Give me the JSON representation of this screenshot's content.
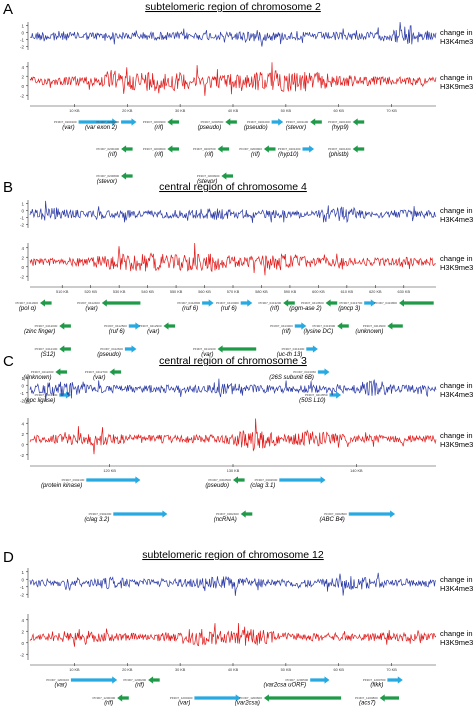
{
  "track_labels": {
    "k4_line1": "change in",
    "k4_line2": "H3K4me3",
    "k9_line1": "change in",
    "k9_line2": "H3K9me3"
  },
  "colors": {
    "h3k4me3": "#2b3aa6",
    "h3k9me3": "#e01a1a",
    "gene_forward": "#27a9e1",
    "gene_reverse": "#1f9a48",
    "axis": "#333333"
  },
  "chart_data": [
    {
      "type": "line",
      "panel": "A",
      "title": "subtelomeric region of chromosome 2",
      "series": [
        {
          "name": "H3K4me3",
          "y_ticks": [
            1,
            0,
            -1,
            -2
          ],
          "ylim": [
            -2.5,
            1.5
          ]
        },
        {
          "name": "H3K9me3",
          "y_ticks": [
            4,
            2,
            0,
            -2
          ],
          "ylim": [
            -3,
            5
          ]
        }
      ],
      "x_ticks": [
        "10 KB",
        "20 KB",
        "30 KB",
        "40 KB",
        "50 KB",
        "60 KB",
        "70 KB"
      ],
      "genes": [
        {
          "row": 0,
          "x": 0.1,
          "len": 0.1,
          "dir": "f",
          "id": "PF3D7_0200100",
          "name": "(var)"
        },
        {
          "row": 0,
          "x": 0.21,
          "len": 0.04,
          "dir": "f",
          "id": "PF3D7_0200200",
          "name": "(var exon 2)"
        },
        {
          "row": 0,
          "x": 0.33,
          "len": 0.03,
          "dir": "r",
          "id": "PF3D7_0200300",
          "name": "(rif)"
        },
        {
          "row": 0,
          "x": 0.48,
          "len": 0.03,
          "dir": "r",
          "id": "PF3D7_0200500",
          "name": "(pseudo)"
        },
        {
          "row": 0,
          "x": 0.6,
          "len": 0.03,
          "dir": "f",
          "id": "PF3D7_0201000",
          "name": "(pseudo)"
        },
        {
          "row": 0,
          "x": 0.7,
          "len": 0.03,
          "dir": "r",
          "id": "PF3D7_0201100",
          "name": "(stevor)"
        },
        {
          "row": 0,
          "x": 0.81,
          "len": 0.03,
          "dir": "r",
          "id": "PF3D7_0201300",
          "name": "(hyp9)"
        },
        {
          "row": 1,
          "x": 0.21,
          "len": 0.03,
          "dir": "r",
          "id": "PF3D7_0200400",
          "name": "(rif)"
        },
        {
          "row": 1,
          "x": 0.33,
          "len": 0.03,
          "dir": "r",
          "id": "PF3D7_0200600",
          "name": "(rif)"
        },
        {
          "row": 1,
          "x": 0.46,
          "len": 0.03,
          "dir": "r",
          "id": "PF3D7_0200700",
          "name": "(rif)"
        },
        {
          "row": 1,
          "x": 0.58,
          "len": 0.03,
          "dir": "r",
          "id": "PF3D7_0200900",
          "name": "(rif)"
        },
        {
          "row": 1,
          "x": 0.68,
          "len": 0.03,
          "dir": "f",
          "id": "PF3D7_0201200",
          "name": "(hyp10)"
        },
        {
          "row": 1,
          "x": 0.81,
          "len": 0.03,
          "dir": "r",
          "id": "PF3D7_0201400",
          "name": "(phistb)"
        },
        {
          "row": 2,
          "x": 0.21,
          "len": 0.03,
          "dir": "r",
          "id": "PF3D7_0200800",
          "name": "(stevor)"
        },
        {
          "row": 2,
          "x": 0.47,
          "len": 0.03,
          "dir": "r",
          "id": "PF3D7_0200900",
          "name": "(stevor)"
        }
      ]
    },
    {
      "type": "line",
      "panel": "B",
      "title": "central region of chromosome 4",
      "series": [
        {
          "name": "H3K4me3",
          "y_ticks": [
            1,
            0,
            -1,
            -2
          ],
          "ylim": [
            -2.5,
            1.5
          ]
        },
        {
          "name": "H3K9me3",
          "y_ticks": [
            4,
            2,
            0,
            -2
          ],
          "ylim": [
            -3,
            5
          ]
        }
      ],
      "x_ticks": [
        "510 KB",
        "520 KB",
        "530 KB",
        "540 KB",
        "550 KB",
        "560 KB",
        "570 KB",
        "580 KB",
        "590 KB",
        "600 KB",
        "610 KB",
        "620 KB",
        "630 KB"
      ],
      "genes": [
        {
          "row": 0,
          "x": 0.0,
          "len": 0.03,
          "dir": "r",
          "id": "PF3D7_0411900",
          "name": "(pol α)"
        },
        {
          "row": 0,
          "x": 0.16,
          "len": 0.1,
          "dir": "r",
          "id": "PF3D7_0412400",
          "name": "(var)"
        },
        {
          "row": 0,
          "x": 0.42,
          "len": 0.03,
          "dir": "f",
          "id": "PF3D7_0412800",
          "name": "(ruf 6)"
        },
        {
          "row": 0,
          "x": 0.52,
          "len": 0.03,
          "dir": "f",
          "id": "PF3D7_0413000",
          "name": "(ruf 6)"
        },
        {
          "row": 0,
          "x": 0.63,
          "len": 0.03,
          "dir": "r",
          "id": "PF3D7_0413200",
          "name": "(rif)"
        },
        {
          "row": 0,
          "x": 0.74,
          "len": 0.03,
          "dir": "r",
          "id": "PF3D7_0413500",
          "name": "(pgm-ase 2)"
        },
        {
          "row": 0,
          "x": 0.84,
          "len": 0.03,
          "dir": "f",
          "id": "PF3D7_0413700",
          "name": "(pncp 3)"
        },
        {
          "row": 0,
          "x": 0.93,
          "len": 0.09,
          "dir": "r",
          "id": "PF3D7_0413800",
          "name": ""
        },
        {
          "row": 1,
          "x": 0.05,
          "len": 0.03,
          "dir": "r",
          "id": "PF3D7_0412000",
          "name": "(zinc finger)"
        },
        {
          "row": 1,
          "x": 0.23,
          "len": 0.03,
          "dir": "f",
          "id": "PF3D7_0412500",
          "name": "(ruf 6)"
        },
        {
          "row": 1,
          "x": 0.32,
          "len": 0.03,
          "dir": "r",
          "id": "PF3D7_0412900",
          "name": "(var)"
        },
        {
          "row": 1,
          "x": 0.66,
          "len": 0.03,
          "dir": "f",
          "id": "PF3D7_0413300",
          "name": "(rif)"
        },
        {
          "row": 1,
          "x": 0.77,
          "len": 0.03,
          "dir": "r",
          "id": "PF3D7_0413600",
          "name": "(lysine DC)"
        },
        {
          "row": 1,
          "x": 0.9,
          "len": 0.04,
          "dir": "r",
          "id": "PF3D7_0413900",
          "name": "(unknown)"
        },
        {
          "row": 2,
          "x": 0.05,
          "len": 0.03,
          "dir": "r",
          "id": "PF3D7_0412100",
          "name": "(S12)"
        },
        {
          "row": 2,
          "x": 0.22,
          "len": 0.03,
          "dir": "f",
          "id": "PF3D7_0412600",
          "name": "(pseudo)"
        },
        {
          "row": 2,
          "x": 0.46,
          "len": 0.1,
          "dir": "r",
          "id": "PF3D7_0413100",
          "name": "(var)"
        },
        {
          "row": 2,
          "x": 0.69,
          "len": 0.03,
          "dir": "f",
          "id": "PF3D7_0413400",
          "name": "(uc-th 13)"
        },
        {
          "row": 3,
          "x": 0.04,
          "len": 0.03,
          "dir": "r",
          "id": "PF3D7_0412200",
          "name": "(unknown)"
        },
        {
          "row": 3,
          "x": 0.18,
          "len": 0.03,
          "dir": "r",
          "id": "PF3D7_0412700",
          "name": "(var)"
        },
        {
          "row": 3,
          "x": 0.72,
          "len": 0.03,
          "dir": "f",
          "id": "PF3D7_0413450",
          "name": "(26S subunit 6B)"
        },
        {
          "row": 4,
          "x": 0.05,
          "len": 0.03,
          "dir": "f",
          "id": "PF3D7_0412300",
          "name": "(ppc ligase)"
        },
        {
          "row": 4,
          "x": 0.75,
          "len": 0.03,
          "dir": "f",
          "id": "PF3D7_0413550",
          "name": "(50S L10)"
        }
      ]
    },
    {
      "type": "line",
      "panel": "C",
      "title": "central region of chromosome 3",
      "series": [
        {
          "name": "H3K4me3",
          "y_ticks": [
            1,
            0,
            -1,
            -2
          ],
          "ylim": [
            -2.5,
            1.5
          ]
        },
        {
          "name": "H3K9me3",
          "y_ticks": [
            4,
            2,
            0,
            -2
          ],
          "ylim": [
            -3,
            5
          ]
        }
      ],
      "x_ticks": [
        "120 KB",
        "130 KB",
        "140 KB"
      ],
      "genes": [
        {
          "row": 0,
          "x": 0.12,
          "len": 0.14,
          "dir": "f",
          "id": "PF3D7_0302100",
          "name": "(protein kinase)"
        },
        {
          "row": 0,
          "x": 0.5,
          "len": 0.03,
          "dir": "r",
          "id": "PF3D7_0302500",
          "name": "(pseudo)"
        },
        {
          "row": 0,
          "x": 0.62,
          "len": 0.12,
          "dir": "f",
          "id": "PF3D7_0302600",
          "name": "(clag 3.1)"
        },
        {
          "row": 1,
          "x": 0.19,
          "len": 0.14,
          "dir": "f",
          "id": "PF3D7_0302200",
          "name": "(clag 3.2)"
        },
        {
          "row": 1,
          "x": 0.52,
          "len": 0.03,
          "dir": "r",
          "id": "PF3D7_0302400",
          "name": "(ncRNA)"
        },
        {
          "row": 1,
          "x": 0.8,
          "len": 0.12,
          "dir": "f",
          "id": "PF3D7_0302800",
          "name": "(ABC B4)"
        }
      ]
    },
    {
      "type": "line",
      "panel": "D",
      "title": "subtelomeric region of chromosome 12",
      "series": [
        {
          "name": "H3K4me3",
          "y_ticks": [
            1,
            0,
            -1,
            -2
          ],
          "ylim": [
            -2.5,
            1.5
          ]
        },
        {
          "name": "H3K9me3",
          "y_ticks": [
            4,
            2,
            0,
            -2
          ],
          "ylim": [
            -3,
            5
          ]
        }
      ],
      "x_ticks": [
        "10 KB",
        "20 KB",
        "30 KB",
        "40 KB",
        "50 KB",
        "60 KB",
        "70 KB"
      ],
      "genes": [
        {
          "row": 0,
          "x": 0.08,
          "len": 0.12,
          "dir": "f",
          "id": "PF3D7_1200100",
          "name": "(var)"
        },
        {
          "row": 0,
          "x": 0.28,
          "len": 0.03,
          "dir": "r",
          "id": "PF3D7_1200200",
          "name": "(rif)"
        },
        {
          "row": 0,
          "x": 0.7,
          "len": 0.05,
          "dir": "f",
          "id": "PF3D7_1200500",
          "name": "(var2csa uORF)"
        },
        {
          "row": 0,
          "x": 0.9,
          "len": 0.04,
          "dir": "f",
          "id": "PF3D7_1200700",
          "name": "(fikk)"
        },
        {
          "row": 1,
          "x": 0.2,
          "len": 0.03,
          "dir": "r",
          "id": "PF3D7_1200300",
          "name": "(rif)"
        },
        {
          "row": 1,
          "x": 0.4,
          "len": 0.12,
          "dir": "f",
          "id": "PF3D7_1200400",
          "name": "(var)"
        },
        {
          "row": 1,
          "x": 0.58,
          "len": 0.2,
          "dir": "r",
          "id": "PF3D7_1200600",
          "name": "(var2csa)"
        },
        {
          "row": 1,
          "x": 0.88,
          "len": 0.05,
          "dir": "r",
          "id": "PF3D7_1200800",
          "name": "(acs7)"
        }
      ]
    }
  ]
}
